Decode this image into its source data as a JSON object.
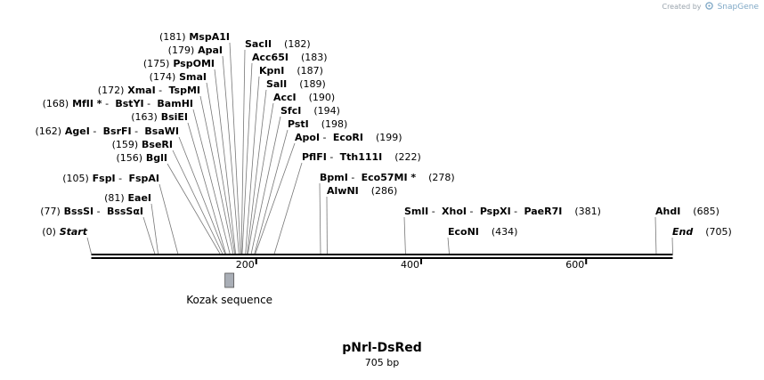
{
  "credit": {
    "text": "Created by",
    "brand": "SnapGene"
  },
  "map": {
    "name": "pNrl-DsRed",
    "length_label": "705 bp",
    "total_bp": 705
  },
  "ticks": [
    {
      "pos": 200,
      "label": "200"
    },
    {
      "pos": 400,
      "label": "400"
    },
    {
      "pos": 600,
      "label": "600"
    }
  ],
  "features": [
    {
      "name": "Kozak sequence",
      "start": 163,
      "end": 172,
      "color": "#a9aeb6"
    }
  ],
  "sites": [
    {
      "pos": 0,
      "parts": [
        {
          "t": "(0)"
        },
        {
          "t": "Start",
          "s": "i"
        }
      ]
    },
    {
      "pos": 77,
      "parts": [
        {
          "t": "(77)"
        },
        {
          "t": "BssSI",
          "s": "b"
        },
        {
          "t": "-"
        },
        {
          "t": "BssSαI",
          "s": "b"
        }
      ]
    },
    {
      "pos": 81,
      "parts": [
        {
          "t": "(81)"
        },
        {
          "t": "EaeI",
          "s": "b"
        }
      ]
    },
    {
      "pos": 105,
      "parts": [
        {
          "t": "(105)"
        },
        {
          "t": "FspI",
          "s": "b"
        },
        {
          "t": "-"
        },
        {
          "t": "FspAI",
          "s": "b"
        }
      ]
    },
    {
      "pos": 156,
      "parts": [
        {
          "t": "(156)"
        },
        {
          "t": "BglI",
          "s": "b"
        }
      ]
    },
    {
      "pos": 159,
      "parts": [
        {
          "t": "(159)"
        },
        {
          "t": "BseRI",
          "s": "b"
        }
      ]
    },
    {
      "pos": 162,
      "parts": [
        {
          "t": "(162)"
        },
        {
          "t": "AgeI",
          "s": "b"
        },
        {
          "t": "-"
        },
        {
          "t": "BsrFI",
          "s": "b"
        },
        {
          "t": "-"
        },
        {
          "t": "BsaWI",
          "s": "b"
        }
      ]
    },
    {
      "pos": 163,
      "parts": [
        {
          "t": "(163)"
        },
        {
          "t": "BsiEI",
          "s": "b"
        }
      ]
    },
    {
      "pos": 168,
      "parts": [
        {
          "t": "(168)"
        },
        {
          "t": "MfII *",
          "s": "b"
        },
        {
          "t": "-"
        },
        {
          "t": "BstYI",
          "s": "b"
        },
        {
          "t": "-"
        },
        {
          "t": "BamHI",
          "s": "b"
        }
      ]
    },
    {
      "pos": 172,
      "parts": [
        {
          "t": "(172)"
        },
        {
          "t": "XmaI",
          "s": "b"
        },
        {
          "t": "-"
        },
        {
          "t": "TspMI",
          "s": "b"
        }
      ]
    },
    {
      "pos": 174,
      "parts": [
        {
          "t": "(174)"
        },
        {
          "t": "SmaI",
          "s": "b"
        }
      ]
    },
    {
      "pos": 175,
      "parts": [
        {
          "t": "(175)"
        },
        {
          "t": "PspOMI",
          "s": "b"
        }
      ]
    },
    {
      "pos": 179,
      "parts": [
        {
          "t": "(179)"
        },
        {
          "t": "ApaI",
          "s": "b"
        }
      ]
    },
    {
      "pos": 181,
      "parts": [
        {
          "t": "(181)"
        },
        {
          "t": "MspA1I",
          "s": "b"
        }
      ]
    },
    {
      "pos": 182,
      "parts": [
        {
          "t": "SacII",
          "s": "b"
        },
        {
          "t": "(182)"
        }
      ]
    },
    {
      "pos": 183,
      "parts": [
        {
          "t": "Acc65I",
          "s": "b"
        },
        {
          "t": "(183)"
        }
      ]
    },
    {
      "pos": 187,
      "parts": [
        {
          "t": "KpnI",
          "s": "b"
        },
        {
          "t": "(187)"
        }
      ]
    },
    {
      "pos": 189,
      "parts": [
        {
          "t": "SalI",
          "s": "b"
        },
        {
          "t": "(189)"
        }
      ]
    },
    {
      "pos": 190,
      "parts": [
        {
          "t": "AccI",
          "s": "b"
        },
        {
          "t": "(190)"
        }
      ]
    },
    {
      "pos": 194,
      "parts": [
        {
          "t": "SfcI",
          "s": "b"
        },
        {
          "t": "(194)"
        }
      ]
    },
    {
      "pos": 198,
      "parts": [
        {
          "t": "PstI",
          "s": "b"
        },
        {
          "t": "(198)"
        }
      ]
    },
    {
      "pos": 199,
      "parts": [
        {
          "t": "ApoI",
          "s": "b"
        },
        {
          "t": "-"
        },
        {
          "t": "EcoRI",
          "s": "b"
        },
        {
          "t": "(199)"
        }
      ]
    },
    {
      "pos": 222,
      "parts": [
        {
          "t": "PflFI",
          "s": "b"
        },
        {
          "t": "-"
        },
        {
          "t": "Tth111I",
          "s": "b"
        },
        {
          "t": "(222)"
        }
      ]
    },
    {
      "pos": 278,
      "parts": [
        {
          "t": "BpmI",
          "s": "b"
        },
        {
          "t": "-"
        },
        {
          "t": "Eco57MI *",
          "s": "b"
        },
        {
          "t": "(278)"
        }
      ]
    },
    {
      "pos": 286,
      "parts": [
        {
          "t": "AlwNI",
          "s": "b"
        },
        {
          "t": "(286)"
        }
      ]
    },
    {
      "pos": 381,
      "parts": [
        {
          "t": "SmlI",
          "s": "b"
        },
        {
          "t": "-"
        },
        {
          "t": "XhoI",
          "s": "b"
        },
        {
          "t": "-"
        },
        {
          "t": "PspXI",
          "s": "b"
        },
        {
          "t": "-"
        },
        {
          "t": "PaeR7I",
          "s": "b"
        },
        {
          "t": "(381)"
        }
      ]
    },
    {
      "pos": 434,
      "parts": [
        {
          "t": "EcoNI",
          "s": "b"
        },
        {
          "t": "(434)"
        }
      ]
    },
    {
      "pos": 685,
      "parts": [
        {
          "t": "AhdI",
          "s": "b"
        },
        {
          "t": "(685)"
        }
      ]
    },
    {
      "pos": 705,
      "parts": [
        {
          "t": "End",
          "s": "i"
        },
        {
          "t": "(705)"
        }
      ]
    }
  ]
}
